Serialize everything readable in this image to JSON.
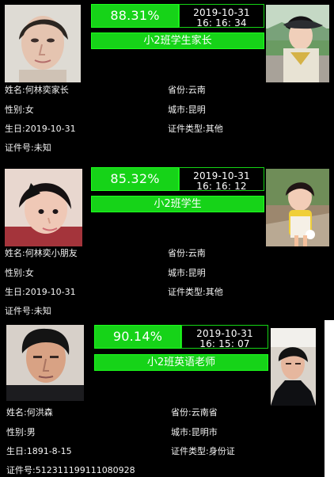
{
  "records": [
    {
      "score": "88.31%",
      "date": "2019-10-31",
      "time": "16: 16: 34",
      "group": "小2班学生家长",
      "fields": {
        "name": "姓名:何林奕家长",
        "gender": "性别:女",
        "birth": "生日:2019-10-31",
        "id": "证件号:未知",
        "province": "省份:云南",
        "city": "城市:昆明",
        "id_type": "证件类型:其他"
      }
    },
    {
      "score": "85.32%",
      "date": "2019-10-31",
      "time": "16: 16: 12",
      "group": "小2班学生",
      "fields": {
        "name": "姓名:何林奕小朋友",
        "gender": "性别:女",
        "birth": "生日:2019-10-31",
        "id": "证件号:未知",
        "province": "省份:云南",
        "city": "城市:昆明",
        "id_type": "证件类型:其他"
      }
    },
    {
      "score": "90.14%",
      "date": "2019-10-31",
      "time": "16: 15: 07",
      "group": "小2班英语老师",
      "fields": {
        "name": "姓名:何洪森",
        "gender": "性别:男",
        "birth": "生日:1891-8-15",
        "id": "证件号:512311199111080928",
        "province": "省份:云南省",
        "city": "城市:昆明市",
        "id_type": "证件类型:身份证"
      }
    }
  ],
  "colors": {
    "accent": "#16d318",
    "background": "#000000",
    "text": "#ffffff"
  }
}
